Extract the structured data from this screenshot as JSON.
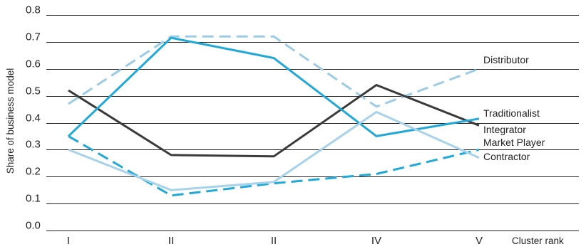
{
  "chart_data": {
    "type": "line",
    "title": "",
    "xlabel": "Cluster rank",
    "ylabel": "Share of business model",
    "categories": [
      "I",
      "II",
      "II",
      "IV",
      "V"
    ],
    "ylim": [
      0,
      0.8
    ],
    "yticks": [
      "0.0",
      "0.1",
      "0.2",
      "0.3",
      "0.4",
      "0.5",
      "0.6",
      "0.7",
      "0.8"
    ],
    "grid": "horizontal",
    "legend": "direct labels at right end of lines",
    "series": [
      {
        "name": "Distributor",
        "values": [
          0.47,
          0.72,
          0.72,
          0.46,
          0.6
        ],
        "color": "#9ccbe6",
        "dashed": true
      },
      {
        "name": "Traditionalist",
        "values": [
          0.52,
          0.28,
          0.275,
          0.54,
          0.39
        ],
        "color": "#3a3a3a",
        "dashed": false
      },
      {
        "name": "Integrator",
        "values": [
          0.35,
          0.715,
          0.64,
          0.35,
          0.415
        ],
        "color": "#1fa8d8",
        "dashed": false
      },
      {
        "name": "Market Player",
        "values": [
          0.35,
          0.13,
          0.175,
          0.21,
          0.3
        ],
        "color": "#1fa8d8",
        "dashed": true
      },
      {
        "name": "Contractor",
        "values": [
          0.3,
          0.15,
          0.18,
          0.44,
          0.27
        ],
        "color": "#a6d2ea",
        "dashed": false
      }
    ]
  }
}
